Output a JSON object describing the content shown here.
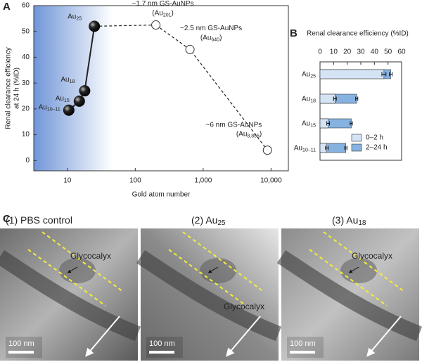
{
  "panels": [
    "A",
    "B",
    "C"
  ],
  "chart_data": [
    {
      "type": "line",
      "ylabel": [
        "Renal clearance efficiency",
        "at 24 h (%ID)"
      ],
      "xlabel": "Gold atom number",
      "log_x": true,
      "xlim": [
        3.2,
        18000
      ],
      "xticks": [
        10,
        100,
        {
          "value": 1000,
          "label": "1,000"
        },
        {
          "value": 10000,
          "label": "10,000"
        }
      ],
      "ylim": [
        -4,
        60
      ],
      "yticks": [
        0,
        10,
        20,
        30,
        40,
        50,
        60
      ],
      "color": "#222222",
      "series": [
        {
          "style": "solid",
          "marker": "filled",
          "x": [
            10.5,
            15,
            18,
            25
          ],
          "values": [
            19.5,
            23,
            27,
            52
          ],
          "labels": [
            {
              "text": "Au",
              "sub": "10–11"
            },
            {
              "text": "Au",
              "sub": "15"
            },
            {
              "text": "Au",
              "sub": "18"
            },
            {
              "text": "Au",
              "sub": "25"
            }
          ]
        },
        {
          "style": "dashed",
          "marker": "open",
          "x": [
            201,
            640,
            8856
          ],
          "values": [
            52.5,
            43,
            4
          ],
          "labels": [
            {
              "desc": "~1.7 nm GS-AuNPs",
              "text": "(Au",
              "sub": "201",
              "end": ")"
            },
            {
              "desc": "~2.5 nm GS-AuNPs",
              "text": "(Au",
              "sub": "640",
              "end": ")"
            },
            {
              "desc": "~6 nm GS-AuNPs",
              "text": "(Au",
              "sub": "8,856",
              "end": ")"
            }
          ]
        }
      ]
    },
    {
      "type": "hbar",
      "title": "Renal clearance efficiency (%ID)",
      "categories": [
        {
          "text": "Au",
          "sub": "25"
        },
        {
          "text": "Au",
          "sub": "18"
        },
        {
          "text": "Au",
          "sub": "15"
        },
        {
          "text": "Au",
          "sub": "10–11"
        }
      ],
      "xlim": [
        0,
        60
      ],
      "xticks": [
        0,
        10,
        20,
        30,
        40,
        50,
        60
      ],
      "legend": "lower-right",
      "series": [
        {
          "name": "2–24 h",
          "color": "#86b2e2",
          "values": [
            52,
            27,
            23,
            19
          ],
          "errors": [
            1,
            0.8,
            0.8,
            0.8
          ]
        },
        {
          "name": "0–2 h",
          "color": "#d4e4f5",
          "values": [
            47,
            11,
            6,
            5
          ],
          "errors": [
            1.5,
            1,
            1,
            1
          ]
        }
      ]
    }
  ],
  "micrographs": [
    {
      "title": {
        "text": "(1) PBS control"
      },
      "annotation": "Glycocalyx",
      "scale": "100 nm"
    },
    {
      "title": {
        "text": "(2) Au",
        "sub": "25"
      },
      "annotation": "Glycocalyx",
      "scale": "100 nm"
    },
    {
      "title": {
        "text": "(3) Au",
        "sub": "18"
      },
      "annotation": "Glycocalyx",
      "scale": "100 nm"
    }
  ]
}
